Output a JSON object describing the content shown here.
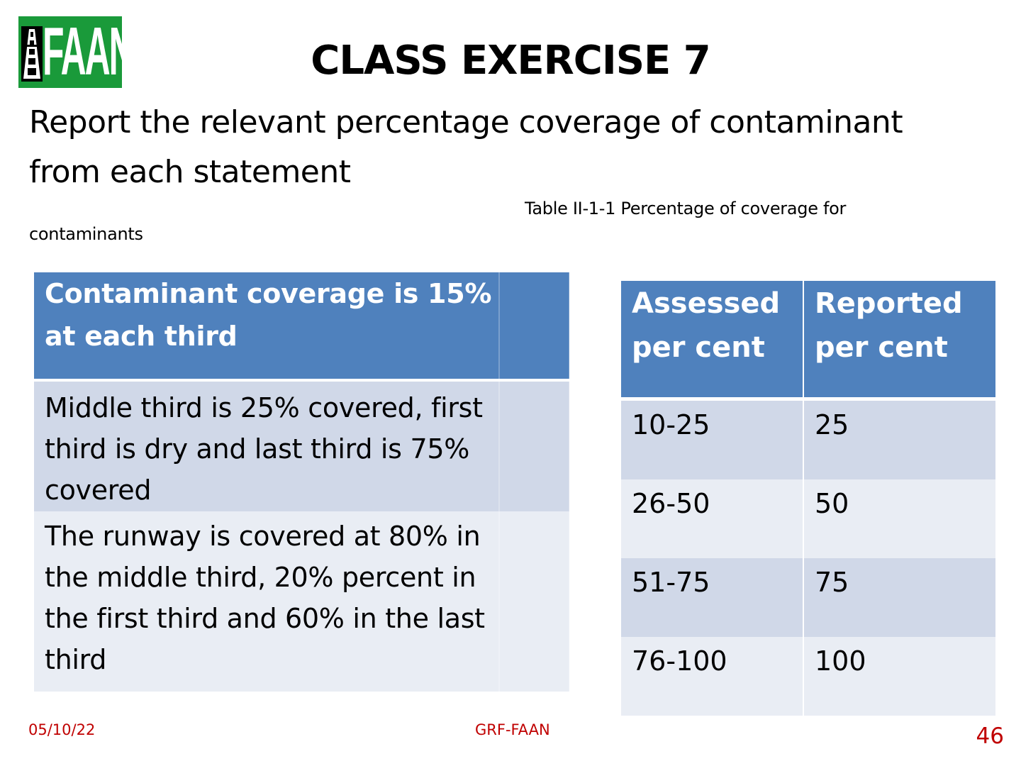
{
  "logo": {
    "text": "FAAN",
    "color": "#1a9a3a",
    "icon": "runway-icon"
  },
  "title": "CLASS EXERCISE 7",
  "subtitle": "Report the relevant percentage coverage of contaminant from each statement",
  "caption": {
    "line1": "Table II-1-1 Percentage of coverage for",
    "line2": "contaminants"
  },
  "statements_table": {
    "header": "Contaminant coverage is 15% at each third",
    "rows": [
      "Middle third is 25% covered, first third is dry and last third is 75% covered",
      "The runway is covered at 80% in the middle third, 20% percent in the first third and 60% in the last third"
    ]
  },
  "coverage_table": {
    "headers": [
      "Assessed per cent",
      "Reported per cent"
    ],
    "rows": [
      [
        "10-25",
        "25"
      ],
      [
        "26-50",
        "50"
      ],
      [
        "51-75",
        "75"
      ],
      [
        "76-100",
        "100"
      ]
    ]
  },
  "footer": {
    "date": "05/10/22",
    "center": "GRF-FAAN",
    "page": "46"
  },
  "colors": {
    "header_blue": "#4f81bd",
    "row_dark": "#d0d8e8",
    "row_light": "#e9edf4",
    "footer_red": "#c00000"
  }
}
